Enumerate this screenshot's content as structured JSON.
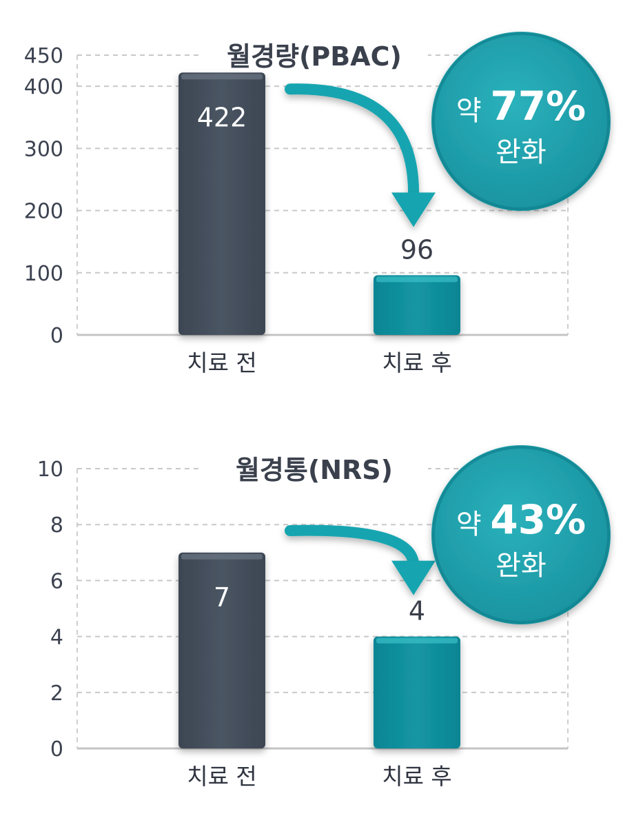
{
  "colors": {
    "before_bar": "#4a5563",
    "after_bar": "#1396a3",
    "accent": "#18a5b0",
    "axis_text": "#3c4250",
    "grid": "#c8c8c8"
  },
  "chart_data": [
    {
      "type": "bar",
      "title": "월경량(PBAC)",
      "categories": [
        "치료 전",
        "치료 후"
      ],
      "values": [
        422,
        96
      ],
      "data_labels": [
        "422",
        "96"
      ],
      "ylim": [
        0,
        450
      ],
      "yticks": [
        0,
        100,
        200,
        300,
        400,
        450
      ],
      "xlabel": "",
      "ylabel": "",
      "grid": true,
      "annotation": {
        "prefix": "약",
        "value": "77%",
        "suffix": "완화"
      }
    },
    {
      "type": "bar",
      "title": "월경통(NRS)",
      "categories": [
        "치료 전",
        "치료 후"
      ],
      "values": [
        7,
        4
      ],
      "data_labels": [
        "7",
        "4"
      ],
      "ylim": [
        0,
        10
      ],
      "yticks": [
        0,
        2,
        4,
        6,
        8,
        10
      ],
      "xlabel": "",
      "ylabel": "",
      "grid": true,
      "annotation": {
        "prefix": "약",
        "value": "43%",
        "suffix": "완화"
      }
    }
  ]
}
